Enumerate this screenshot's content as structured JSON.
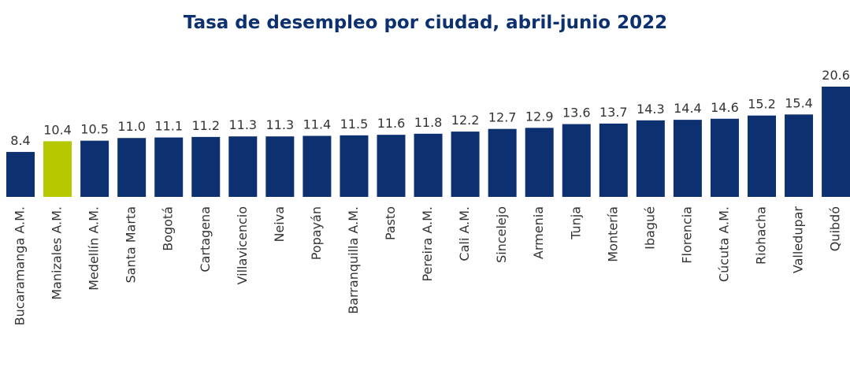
{
  "chart_data": {
    "type": "bar",
    "title": "Tasa de desempleo por ciudad, abril-junio 2022",
    "categories": [
      "Bucaramanga A.M.",
      "Manizales A.M.",
      "Medellín A.M.",
      "Santa Marta",
      "Bogotá",
      "Cartagena",
      "Villavicencio",
      "Neiva",
      "Popayán",
      "Barranquilla A.M.",
      "Pasto",
      "Pereira A.M.",
      "Cali A.M.",
      "Sincelejo",
      "Armenia",
      "Tunja",
      "Montería",
      "Ibagué",
      "Florencia",
      "Cúcuta A.M.",
      "Riohacha",
      "Valledupar",
      "Quibdó"
    ],
    "values": [
      8.4,
      10.4,
      10.5,
      11.0,
      11.1,
      11.2,
      11.3,
      11.3,
      11.4,
      11.5,
      11.6,
      11.8,
      12.2,
      12.7,
      12.9,
      13.6,
      13.7,
      14.3,
      14.4,
      14.6,
      15.2,
      15.4,
      20.6
    ],
    "value_labels": [
      "8.4",
      "10.4",
      "10.5",
      "11.0",
      "11.1",
      "11.2",
      "11.3",
      "11.3",
      "11.4",
      "11.5",
      "11.6",
      "11.8",
      "12.2",
      "12.7",
      "12.9",
      "13.6",
      "13.7",
      "14.3",
      "14.4",
      "14.6",
      "15.2",
      "15.4",
      "20.6"
    ],
    "colors": [
      "#0d3170",
      "#b5c800",
      "#0d3170",
      "#0d3170",
      "#0d3170",
      "#0d3170",
      "#0d3170",
      "#0d3170",
      "#0d3170",
      "#0d3170",
      "#0d3170",
      "#0d3170",
      "#0d3170",
      "#0d3170",
      "#0d3170",
      "#0d3170",
      "#0d3170",
      "#0d3170",
      "#0d3170",
      "#0d3170",
      "#0d3170",
      "#0d3170",
      "#0d3170"
    ]
  }
}
